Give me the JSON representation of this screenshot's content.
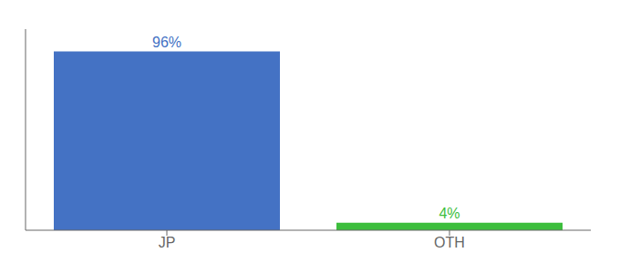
{
  "chart_data": {
    "type": "bar",
    "categories": [
      "JP",
      "OTH"
    ],
    "values": [
      96,
      4
    ],
    "value_labels": [
      "96%",
      "4%"
    ],
    "colors": [
      "#4472C4",
      "#3DBE3D"
    ],
    "ylim": [
      0,
      108
    ],
    "data_labels": true,
    "tick_labels": "x",
    "grid": false
  }
}
